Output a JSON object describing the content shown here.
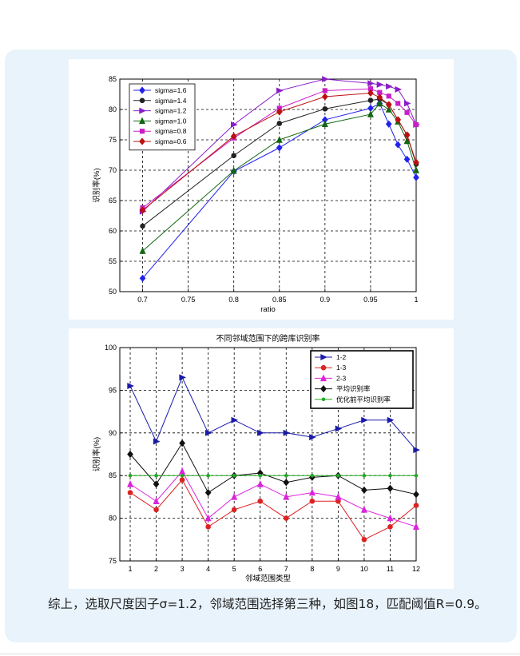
{
  "caption": "综上，选取尺度因子σ=1.2，邻域范围选择第三种，如图18，匹配阈值R=0.9。",
  "chart_data": [
    {
      "type": "line",
      "title": "",
      "xlabel": "ratio",
      "ylabel": "识别率(%)",
      "xlim": [
        0.675,
        1.0
      ],
      "ylim": [
        50,
        85
      ],
      "xticks": [
        "0.7",
        "0.75",
        "0.8",
        "0.85",
        "0.9",
        "0.95",
        "1"
      ],
      "yticks": [
        "50",
        "55",
        "60",
        "65",
        "70",
        "75",
        "80",
        "85"
      ],
      "grid": true,
      "legend_position": "top-left",
      "x": [
        0.7,
        0.8,
        0.85,
        0.9,
        0.95,
        0.96,
        0.97,
        0.98,
        0.99,
        1.0
      ],
      "series": [
        {
          "name": "sigma=1.6",
          "color": "#2222ee",
          "marker": "diamond",
          "values": [
            52.2,
            69.8,
            73.7,
            78.3,
            80.2,
            81.0,
            77.6,
            74.2,
            71.8,
            68.8
          ]
        },
        {
          "name": "sigma=1.4",
          "color": "#222222",
          "marker": "circle",
          "values": [
            60.8,
            72.4,
            77.7,
            80.1,
            81.5,
            81.7,
            80.8,
            78.3,
            75.8,
            71.0
          ]
        },
        {
          "name": "sigma=1.2",
          "color": "#8a1ec8",
          "marker": "triangle-right",
          "values": [
            63.2,
            77.5,
            83.1,
            85.0,
            84.3,
            84.1,
            83.8,
            83.3,
            81.0,
            77.5
          ]
        },
        {
          "name": "sigma=1.0",
          "color": "#116611",
          "marker": "triangle-up",
          "values": [
            56.7,
            69.9,
            75.0,
            77.6,
            79.2,
            81.0,
            80.0,
            78.0,
            74.8,
            70.0
          ]
        },
        {
          "name": "sigma=0.8",
          "color": "#c81ec8",
          "marker": "square",
          "values": [
            63.8,
            75.3,
            80.2,
            83.1,
            83.4,
            82.8,
            82.2,
            81.0,
            79.5,
            77.5
          ]
        },
        {
          "name": "sigma=0.6",
          "color": "#bb1111",
          "marker": "diamond",
          "values": [
            63.4,
            75.6,
            79.6,
            82.1,
            82.7,
            82.0,
            80.8,
            78.3,
            75.8,
            71.3
          ]
        }
      ]
    },
    {
      "type": "line",
      "title": "不同邻域范围下的跨库识别率",
      "xlabel": "邻域范围类型",
      "ylabel": "识别率(%)",
      "xlim": [
        0.6,
        12
      ],
      "ylim": [
        75,
        100
      ],
      "xticks": [
        "1",
        "2",
        "3",
        "4",
        "5",
        "6",
        "7",
        "8",
        "9",
        "10",
        "11",
        "12"
      ],
      "yticks": [
        "75",
        "80",
        "85",
        "90",
        "95",
        "100"
      ],
      "grid": true,
      "legend_position": "top-right",
      "x": [
        1,
        2,
        3,
        4,
        5,
        6,
        7,
        8,
        9,
        10,
        11,
        12
      ],
      "series": [
        {
          "name": "1-2",
          "color": "#1a1aaa",
          "marker": "triangle-right",
          "values": [
            95.5,
            89.0,
            96.5,
            90.0,
            91.5,
            90.0,
            90.0,
            89.5,
            90.5,
            91.5,
            91.5,
            88.0
          ]
        },
        {
          "name": "1-3",
          "color": "#dd2222",
          "marker": "circle",
          "values": [
            83.0,
            81.0,
            84.5,
            79.0,
            81.0,
            82.0,
            80.0,
            82.0,
            82.0,
            77.5,
            79.0,
            81.5
          ]
        },
        {
          "name": "2-3",
          "color": "#dd22dd",
          "marker": "triangle-up",
          "values": [
            84.0,
            82.0,
            85.5,
            80.0,
            82.5,
            84.0,
            82.5,
            83.0,
            82.5,
            81.0,
            80.0,
            79.0
          ]
        },
        {
          "name": "平均识别率",
          "color": "#111111",
          "marker": "diamond",
          "values": [
            87.5,
            84.0,
            88.8,
            83.0,
            85.0,
            85.3,
            84.2,
            84.8,
            85.0,
            83.3,
            83.5,
            82.8
          ]
        },
        {
          "name": "优化前平均识别率",
          "color": "#22aa22",
          "marker": "dot",
          "values": [
            85,
            85,
            85,
            85,
            85,
            85,
            85,
            85,
            85,
            85,
            85,
            85
          ]
        }
      ]
    }
  ]
}
